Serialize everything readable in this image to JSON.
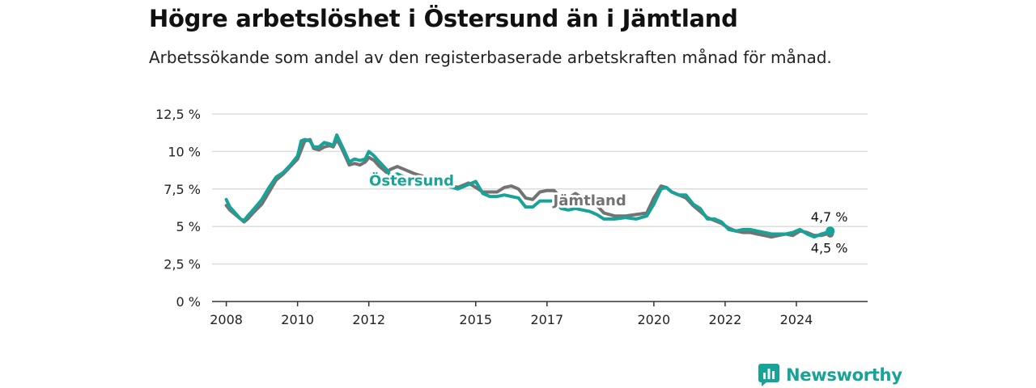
{
  "title": "Högre arbetslöshet i Östersund än i Jämtland",
  "subtitle": "Arbetssökande som andel av den registerbaserade arbetskraften månad för månad.",
  "brand": {
    "name": "Newsworthy",
    "icon": "newsworthy-logo-icon"
  },
  "colors": {
    "ostersund": "#17a398",
    "jamtland": "#737373",
    "grid": "#dddddd",
    "axis": "#333333"
  },
  "chart_data": {
    "type": "line",
    "title": "Högre arbetslöshet i Östersund än i Jämtland",
    "subtitle": "Arbetssökande som andel av den registerbaserade arbetskraften månad för månad.",
    "ylim": [
      0,
      12.5
    ],
    "yticks": [
      0,
      2.5,
      5,
      7.5,
      10,
      12.5
    ],
    "ytick_labels": [
      "0 %",
      "2,5 %",
      "5 %",
      "7,5 %",
      "10 %",
      "12,5 %"
    ],
    "xlim": [
      2007.6,
      2026.0
    ],
    "xticks": [
      2008,
      2010,
      2012,
      2015,
      2017,
      2020,
      2022,
      2024
    ],
    "xtick_labels": [
      "2008",
      "2010",
      "2012",
      "2015",
      "2017",
      "2020",
      "2022",
      "2024"
    ],
    "grid": true,
    "end_labels": [
      "4,7 %",
      "4,5 %"
    ],
    "series": [
      {
        "name": "Jämtland",
        "color": "#737373",
        "label_at": 2018.2,
        "x": [
          2008.0,
          2008.1,
          2008.25,
          2008.4,
          2008.5,
          2008.6,
          2008.75,
          2009.0,
          2009.2,
          2009.4,
          2009.6,
          2009.8,
          2010.0,
          2010.1,
          2010.2,
          2010.35,
          2010.45,
          2010.6,
          2010.75,
          2010.9,
          2011.0,
          2011.1,
          2011.2,
          2011.3,
          2011.45,
          2011.6,
          2011.75,
          2011.9,
          2012.0,
          2012.15,
          2012.3,
          2012.5,
          2012.6,
          2012.8,
          2013.0,
          2013.3,
          2013.6,
          2013.9,
          2014.2,
          2014.5,
          2014.8,
          2015.0,
          2015.2,
          2015.4,
          2015.6,
          2015.8,
          2016.0,
          2016.2,
          2016.4,
          2016.6,
          2016.8,
          2017.0,
          2017.2,
          2017.4,
          2017.6,
          2017.8,
          2018.0,
          2018.2,
          2018.4,
          2018.6,
          2018.9,
          2019.2,
          2019.5,
          2019.8,
          2020.0,
          2020.2,
          2020.35,
          2020.5,
          2020.7,
          2020.9,
          2021.1,
          2021.3,
          2021.5,
          2021.7,
          2021.9,
          2022.1,
          2022.3,
          2022.5,
          2022.7,
          2022.9,
          2023.1,
          2023.3,
          2023.5,
          2023.7,
          2023.9,
          2024.1,
          2024.3,
          2024.5,
          2024.7,
          2024.85,
          2024.95
        ],
        "values": [
          6.4,
          6.1,
          5.8,
          5.5,
          5.3,
          5.5,
          5.9,
          6.5,
          7.3,
          8.1,
          8.5,
          9.0,
          9.5,
          10.1,
          10.7,
          10.8,
          10.2,
          10.1,
          10.3,
          10.4,
          10.3,
          10.8,
          10.4,
          9.9,
          9.1,
          9.2,
          9.1,
          9.3,
          9.6,
          9.4,
          9.0,
          8.6,
          8.8,
          9.0,
          8.8,
          8.5,
          8.3,
          8.0,
          7.8,
          7.6,
          7.9,
          7.6,
          7.3,
          7.3,
          7.3,
          7.6,
          7.7,
          7.5,
          6.9,
          6.8,
          7.3,
          7.4,
          7.4,
          6.9,
          6.9,
          7.2,
          6.9,
          6.8,
          6.4,
          5.9,
          5.7,
          5.7,
          5.8,
          5.9,
          6.9,
          7.7,
          7.6,
          7.3,
          7.1,
          6.9,
          6.4,
          6.0,
          5.6,
          5.4,
          5.2,
          4.9,
          4.7,
          4.6,
          4.6,
          4.5,
          4.4,
          4.3,
          4.4,
          4.5,
          4.4,
          4.7,
          4.6,
          4.4,
          4.4,
          4.5,
          4.5
        ]
      },
      {
        "name": "Östersund",
        "color": "#17a398",
        "label_at": 2013.2,
        "x": [
          2008.0,
          2008.1,
          2008.25,
          2008.4,
          2008.5,
          2008.6,
          2008.75,
          2009.0,
          2009.2,
          2009.4,
          2009.6,
          2009.8,
          2010.0,
          2010.1,
          2010.2,
          2010.35,
          2010.45,
          2010.6,
          2010.75,
          2010.9,
          2011.0,
          2011.1,
          2011.2,
          2011.3,
          2011.45,
          2011.6,
          2011.75,
          2011.9,
          2012.0,
          2012.15,
          2012.3,
          2012.5,
          2012.6,
          2012.8,
          2013.0,
          2013.3,
          2013.6,
          2013.9,
          2014.2,
          2014.5,
          2014.8,
          2015.0,
          2015.2,
          2015.4,
          2015.6,
          2015.8,
          2016.0,
          2016.2,
          2016.4,
          2016.6,
          2016.8,
          2017.0,
          2017.2,
          2017.4,
          2017.6,
          2017.8,
          2018.0,
          2018.2,
          2018.4,
          2018.6,
          2018.9,
          2019.2,
          2019.5,
          2019.8,
          2020.0,
          2020.2,
          2020.35,
          2020.5,
          2020.7,
          2020.9,
          2021.1,
          2021.3,
          2021.5,
          2021.7,
          2021.9,
          2022.1,
          2022.3,
          2022.5,
          2022.7,
          2022.9,
          2023.1,
          2023.3,
          2023.5,
          2023.7,
          2023.9,
          2024.1,
          2024.3,
          2024.5,
          2024.7,
          2024.85,
          2024.95
        ],
        "values": [
          6.8,
          6.3,
          5.9,
          5.5,
          5.4,
          5.7,
          6.1,
          6.8,
          7.6,
          8.3,
          8.6,
          9.1,
          9.7,
          10.7,
          10.8,
          10.7,
          10.3,
          10.3,
          10.6,
          10.5,
          10.4,
          11.1,
          10.6,
          10.1,
          9.3,
          9.5,
          9.4,
          9.5,
          10.0,
          9.7,
          9.3,
          8.8,
          8.4,
          8.5,
          8.3,
          8.1,
          8.0,
          7.8,
          7.7,
          7.5,
          7.8,
          8.0,
          7.2,
          7.0,
          7.0,
          7.1,
          7.0,
          6.9,
          6.3,
          6.3,
          6.7,
          6.7,
          6.7,
          6.2,
          6.1,
          6.2,
          6.1,
          6.0,
          5.8,
          5.5,
          5.5,
          5.6,
          5.5,
          5.7,
          6.5,
          7.5,
          7.6,
          7.3,
          7.1,
          7.1,
          6.5,
          6.2,
          5.5,
          5.5,
          5.3,
          4.8,
          4.7,
          4.8,
          4.8,
          4.7,
          4.6,
          4.5,
          4.5,
          4.5,
          4.6,
          4.8,
          4.5,
          4.3,
          4.5,
          4.6,
          4.7
        ]
      }
    ]
  }
}
